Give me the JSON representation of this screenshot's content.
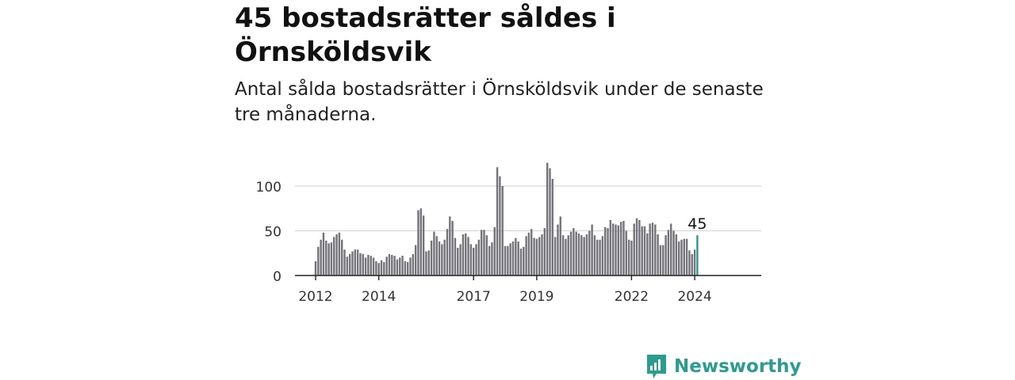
{
  "header": {
    "title": "45 bostadsrätter såldes i Örnsköldsvik",
    "subtitle": "Antal sålda bostadsrätter i Örnsköldsvik under de senaste tre månaderna."
  },
  "brand": {
    "name": "Newsworthy",
    "color": "#2a9d8f",
    "icon": "newsworthy-logo-icon"
  },
  "chart_data": {
    "type": "bar",
    "title": "",
    "xlabel": "",
    "ylabel": "",
    "ylim": [
      0,
      130
    ],
    "yticks": [
      0,
      50,
      100
    ],
    "xtick_labels": [
      "2012",
      "2014",
      "2017",
      "2019",
      "2022",
      "2024"
    ],
    "x_start": "2012-01",
    "grid": true,
    "colors": {
      "bar": "#74737a",
      "highlight": "#2a9d8f"
    },
    "series": [
      {
        "values": [
          16,
          32,
          40,
          48,
          39,
          36,
          37,
          43,
          46,
          48,
          40,
          29,
          21,
          24,
          27,
          29,
          29,
          25,
          24,
          20,
          23,
          22,
          20,
          16,
          14,
          17,
          15,
          21,
          24,
          23,
          22,
          18,
          20,
          22,
          16,
          15,
          20,
          24,
          34,
          73,
          75,
          67,
          27,
          28,
          39,
          49,
          44,
          38,
          35,
          40,
          52,
          66,
          61,
          42,
          31,
          35,
          46,
          47,
          43,
          35,
          31,
          35,
          40,
          51,
          51,
          45,
          33,
          37,
          54,
          121,
          111,
          100,
          33,
          33,
          36,
          38,
          42,
          38,
          30,
          32,
          44,
          48,
          52,
          42,
          41,
          43,
          46,
          53,
          126,
          120,
          108,
          43,
          57,
          66,
          45,
          41,
          45,
          49,
          53,
          49,
          47,
          45,
          43,
          46,
          50,
          57,
          45,
          40,
          40,
          44,
          54,
          53,
          62,
          58,
          57,
          56,
          60,
          61,
          50,
          40,
          39,
          58,
          64,
          62,
          55,
          55,
          47,
          58,
          59,
          57,
          46,
          34,
          34,
          45,
          51,
          58,
          50,
          46,
          38,
          40,
          41,
          41,
          28,
          24,
          29,
          45
        ]
      }
    ],
    "annotation": {
      "label": "45"
    }
  }
}
